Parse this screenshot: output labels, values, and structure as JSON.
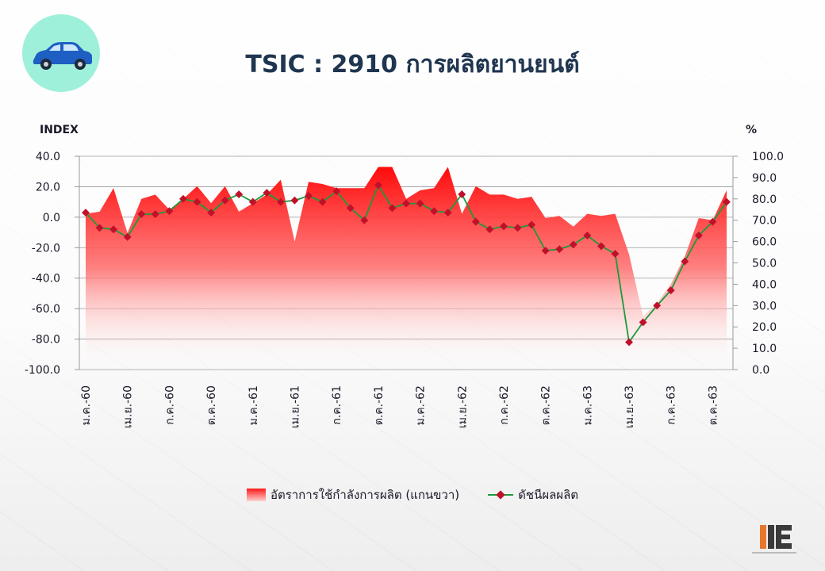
{
  "title": "TSIC  :  2910  การผลิตยานยนต์",
  "icons": {
    "badge": "car-icon",
    "logo": "oie-logo-icon"
  },
  "colors": {
    "area": "#ff1a1a",
    "line": "#1a9a3a",
    "marker": "#c0102a",
    "title": "#1f3550",
    "badge": "#9ff0da"
  },
  "chart_data": {
    "type": "line",
    "left_unit": "INDEX",
    "right_unit": "%",
    "y_left_lim": [
      -100,
      40
    ],
    "y_right_lim": [
      0,
      100
    ],
    "y_left_ticks": [
      "40.0",
      "20.0",
      "0.0",
      "-20.0",
      "-40.0",
      "-60.0",
      "-80.0",
      "-100.0"
    ],
    "y_right_ticks": [
      "100.0",
      "90.0",
      "80.0",
      "70.0",
      "60.0",
      "50.0",
      "40.0",
      "30.0",
      "20.0",
      "10.0",
      "0.0"
    ],
    "x_tick_labels": [
      "ม.ค.-60",
      "เม.ย.-60",
      "ก.ค.-60",
      "ต.ค.-60",
      "ม.ค.-61",
      "เม.ย.-61",
      "ก.ค.-61",
      "ต.ค.-61",
      "ม.ค.-62",
      "เม.ย.-62",
      "ก.ค.-62",
      "ต.ค.-62",
      "ม.ค.-63",
      "เม.ย.-63",
      "ก.ค.-63",
      "ต.ค.-63"
    ],
    "legend_position": "bottom",
    "grid": true,
    "series": [
      {
        "name": "อัตราการใช้กำลังการผลิต (แกนขวา)",
        "type": "area",
        "axis": "right",
        "values": [
          73,
          74,
          85,
          64,
          80,
          82,
          75,
          80,
          86,
          78,
          86,
          74,
          78,
          82,
          89,
          60,
          88,
          87,
          85,
          85,
          85,
          95,
          95,
          80,
          84,
          85,
          95,
          73,
          86,
          82,
          82,
          80,
          81,
          71,
          72,
          67,
          73,
          72,
          73,
          54,
          25,
          31,
          40,
          53,
          71,
          70,
          84
        ]
      },
      {
        "name": "ดัชนีผลผลิต",
        "type": "line",
        "axis": "left",
        "values": [
          3,
          -7,
          -8,
          -13,
          2,
          2,
          4,
          12,
          10,
          3,
          11,
          15,
          10,
          16,
          10,
          11,
          14,
          10,
          17,
          6,
          -2,
          21,
          6,
          9,
          9,
          4,
          3,
          15,
          -3,
          -8,
          -6,
          -7,
          -5,
          -22,
          -21,
          -18,
          -12,
          -19,
          -24,
          -82,
          -69,
          -58,
          -48,
          -29,
          -12,
          -3,
          10
        ]
      }
    ]
  }
}
